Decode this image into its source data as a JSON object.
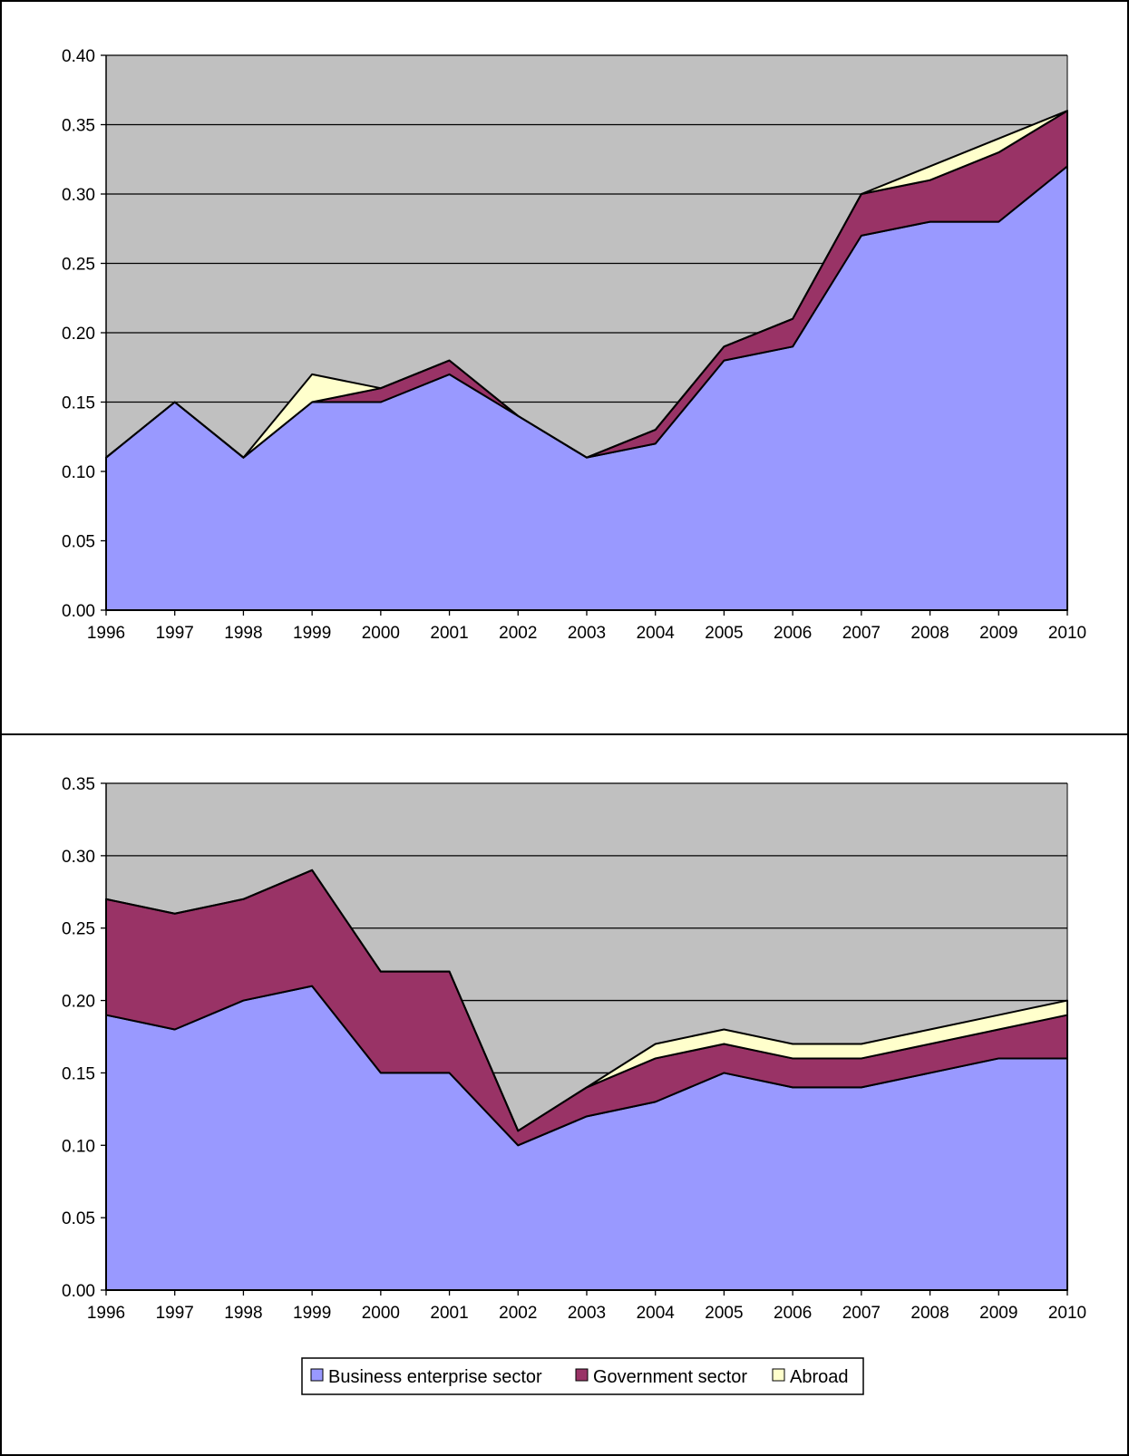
{
  "colors": {
    "plot_background": "#c0c0c0",
    "business": "#9999ff",
    "government": "#993366",
    "abroad": "#ffffcc",
    "gridline": "#000000"
  },
  "legend": {
    "position": "bottom-center",
    "items": [
      {
        "label": "Business enterprise sector",
        "color": "#9999ff"
      },
      {
        "label": "Government sector",
        "color": "#993366"
      },
      {
        "label": "Abroad",
        "color": "#ffffcc"
      }
    ]
  },
  "chart_data": [
    {
      "type": "area",
      "stacked": true,
      "title": "",
      "xlabel": "",
      "ylabel": "",
      "categories": [
        "1996",
        "1997",
        "1998",
        "1999",
        "2000",
        "2001",
        "2002",
        "2003",
        "2004",
        "2005",
        "2006",
        "2007",
        "2008",
        "2009",
        "2010"
      ],
      "ylim": [
        0,
        0.4
      ],
      "yticks": [
        "0.00",
        "0.05",
        "0.10",
        "0.15",
        "0.20",
        "0.25",
        "0.30",
        "0.35",
        "0.40"
      ],
      "grid": true,
      "series": [
        {
          "name": "Business enterprise sector",
          "values": [
            0.11,
            0.15,
            0.11,
            0.15,
            0.15,
            0.17,
            0.14,
            0.11,
            0.12,
            0.18,
            0.19,
            0.27,
            0.28,
            0.28,
            0.32
          ]
        },
        {
          "name": "Government sector",
          "values": [
            0,
            0,
            0,
            0,
            0.01,
            0.01,
            0,
            0,
            0.01,
            0.01,
            0.02,
            0.03,
            0.03,
            0.05,
            0.04
          ]
        },
        {
          "name": "Abroad",
          "values": [
            0,
            0,
            0,
            0.02,
            0,
            0,
            0,
            0,
            0,
            0,
            0,
            0,
            0.01,
            0.01,
            0
          ]
        }
      ]
    },
    {
      "type": "area",
      "stacked": true,
      "title": "",
      "xlabel": "",
      "ylabel": "",
      "categories": [
        "1996",
        "1997",
        "1998",
        "1999",
        "2000",
        "2001",
        "2002",
        "2003",
        "2004",
        "2005",
        "2006",
        "2007",
        "2008",
        "2009",
        "2010"
      ],
      "ylim": [
        0,
        0.35
      ],
      "yticks": [
        "0.00",
        "0.05",
        "0.10",
        "0.15",
        "0.20",
        "0.25",
        "0.30",
        "0.35"
      ],
      "grid": true,
      "series": [
        {
          "name": "Business enterprise sector",
          "values": [
            0.19,
            0.18,
            0.2,
            0.21,
            0.15,
            0.15,
            0.1,
            0.12,
            0.13,
            0.15,
            0.14,
            0.14,
            0.15,
            0.16,
            0.16
          ]
        },
        {
          "name": "Government sector",
          "values": [
            0.08,
            0.08,
            0.07,
            0.08,
            0.07,
            0.07,
            0.01,
            0.02,
            0.03,
            0.02,
            0.02,
            0.02,
            0.02,
            0.02,
            0.03
          ]
        },
        {
          "name": "Abroad",
          "values": [
            0,
            0,
            0,
            0,
            0,
            0,
            0,
            0,
            0.01,
            0.01,
            0.01,
            0.01,
            0.01,
            0.01,
            0.01
          ]
        }
      ]
    }
  ]
}
